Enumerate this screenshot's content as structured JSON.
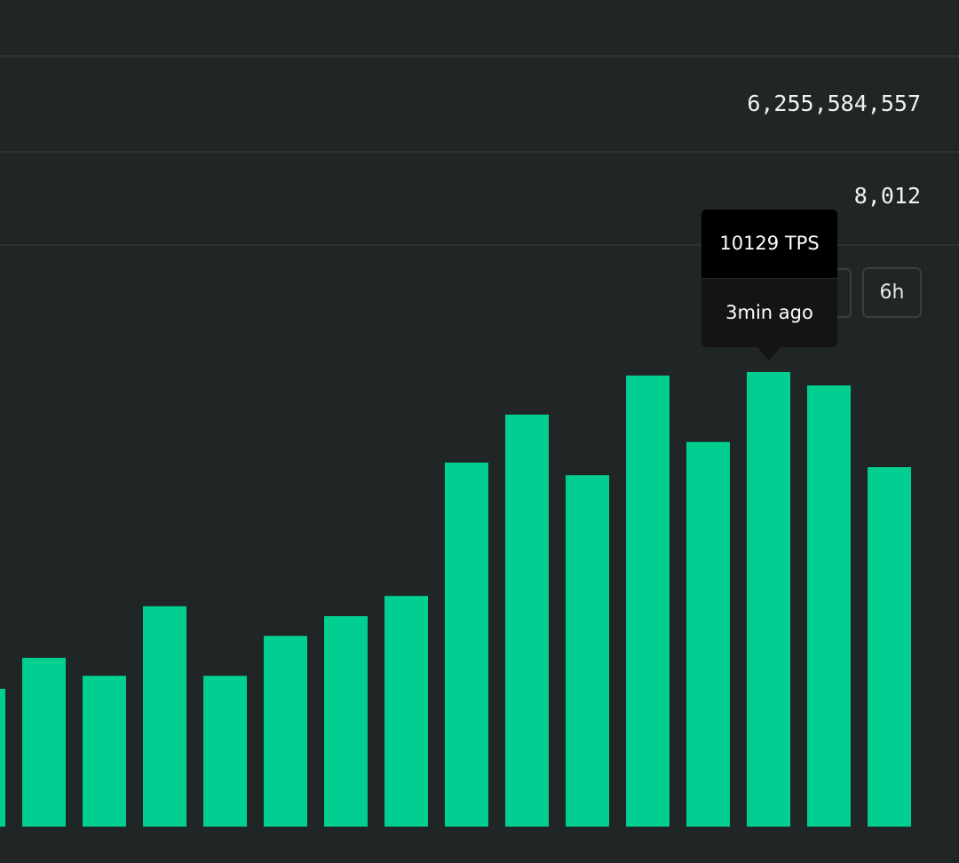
{
  "stats": [
    {
      "value": "6,255,584,557"
    },
    {
      "value": "8,012"
    }
  ],
  "time_buttons": [
    "6h"
  ],
  "chart_data": {
    "type": "bar",
    "values": [
      3070,
      3760,
      3360,
      4910,
      3360,
      4250,
      4690,
      5140,
      8110,
      9180,
      7830,
      10050,
      8570,
      10129,
      9830,
      8010
    ],
    "value_labels": [
      null,
      null,
      null,
      null,
      null,
      null,
      null,
      null,
      null,
      null,
      null,
      null,
      null,
      "10129 TPS",
      null,
      null
    ],
    "tooltip_time": "3min ago",
    "color": "#00cf91"
  }
}
